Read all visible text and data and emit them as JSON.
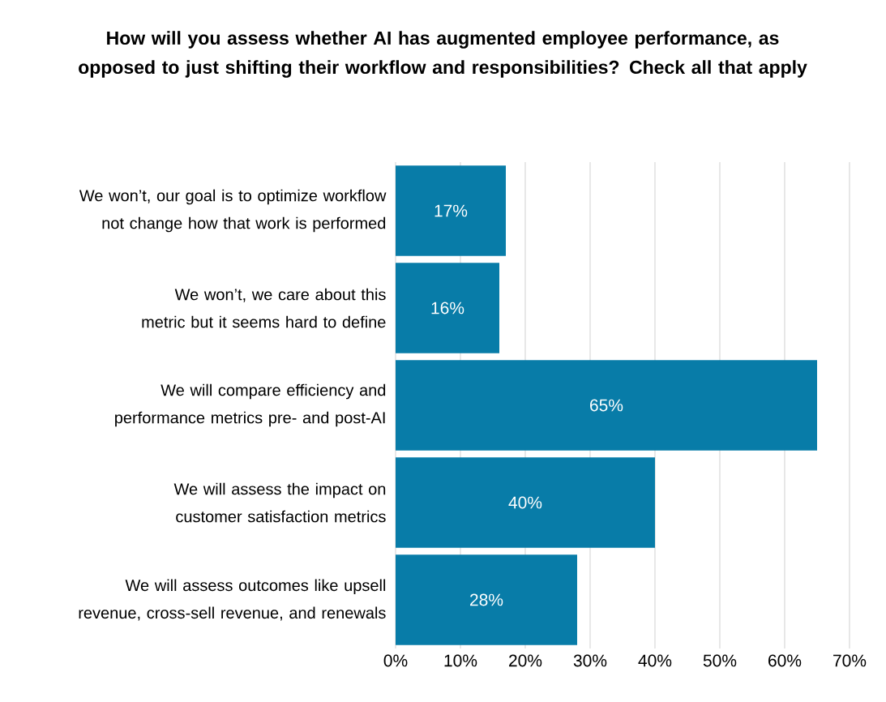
{
  "chart_data": {
    "type": "bar",
    "orientation": "horizontal",
    "title": "How will you assess whether AI has augmented employee performance, as opposed to just shifting their workflow and responsibilities? Check all that apply",
    "categories": [
      "We won’t, our goal is to optimize workflow not change how that work is performed",
      "We won’t, we care about this metric but it seems hard to define",
      "We will compare efficiency and performance metrics pre- and post-AI",
      "We will assess the impact on customer satisfaction metrics",
      "We will assess outcomes like upsell revenue, cross-sell revenue, and renewals"
    ],
    "values": [
      17,
      16,
      65,
      40,
      28
    ],
    "value_labels": [
      "17%",
      "16%",
      "65%",
      "40%",
      "28%"
    ],
    "color": "#087ca8",
    "xlim": [
      0,
      70
    ],
    "xticks": [
      {
        "value": 0,
        "label": "0%"
      },
      {
        "value": 10,
        "label": "10%"
      },
      {
        "value": 20,
        "label": "20%"
      },
      {
        "value": 30,
        "label": "30%"
      },
      {
        "value": 40,
        "label": "40%"
      },
      {
        "value": 50,
        "label": "50%"
      },
      {
        "value": 60,
        "label": "60%"
      },
      {
        "value": 70,
        "label": "70%"
      }
    ],
    "grid": "x"
  }
}
